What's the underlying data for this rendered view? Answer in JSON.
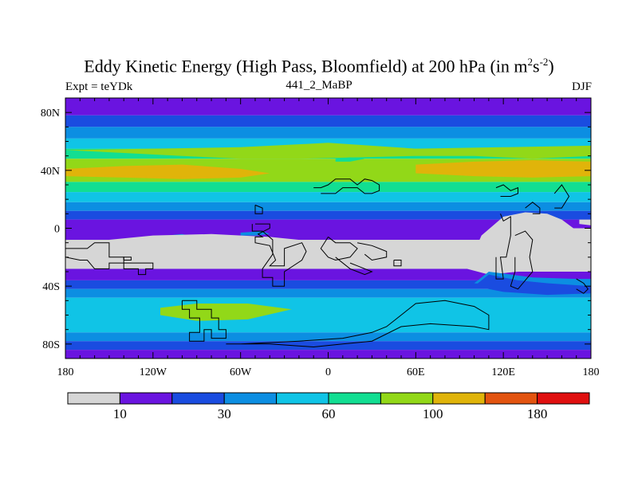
{
  "chart_data": {
    "type": "heatmap",
    "title_main": "Eddy Kinetic Energy (High Pass, Bloomfield) at 200 hPa (in m",
    "title_sup1": "2",
    "title_mid": "s",
    "title_sup2": "-2",
    "title_end": ")",
    "subtitle_left": "Expt = teYDk",
    "subtitle_center": "441_2_MaBP",
    "subtitle_right": "DJF",
    "xlim": [
      -180,
      180
    ],
    "ylim": [
      -90,
      90
    ],
    "x_ticks": [
      {
        "value": -180,
        "label": "180"
      },
      {
        "value": -120,
        "label": "120W"
      },
      {
        "value": -60,
        "label": "60W"
      },
      {
        "value": 0,
        "label": "0"
      },
      {
        "value": 60,
        "label": "60E"
      },
      {
        "value": 120,
        "label": "120E"
      },
      {
        "value": 180,
        "label": "180"
      }
    ],
    "y_ticks": [
      {
        "value": 80,
        "label": "80N"
      },
      {
        "value": 40,
        "label": "40N"
      },
      {
        "value": 0,
        "label": "0"
      },
      {
        "value": -40,
        "label": "40S"
      },
      {
        "value": -80,
        "label": "80S"
      }
    ],
    "colorbar": {
      "colors": [
        "#d6d6d6",
        "#6a14e0",
        "#1a4ce0",
        "#0c8ee2",
        "#10c4e6",
        "#12de92",
        "#92d818",
        "#e0b40a",
        "#e35410",
        "#e01010"
      ],
      "labels": [
        {
          "boundary": 1,
          "label": "10"
        },
        {
          "boundary": 3,
          "label": "30"
        },
        {
          "boundary": 5,
          "label": "60"
        },
        {
          "boundary": 7,
          "label": "100"
        },
        {
          "boundary": 9,
          "label": "180"
        }
      ]
    },
    "zonal_bands": [
      {
        "lat_top": 90,
        "lat_bottom": 78,
        "level": 1
      },
      {
        "lat_top": 78,
        "lat_bottom": 70,
        "level": 2
      },
      {
        "lat_top": 70,
        "lat_bottom": 62,
        "level": 3
      },
      {
        "lat_top": 62,
        "lat_bottom": 55,
        "level": 4
      },
      {
        "lat_top": 55,
        "lat_bottom": 48,
        "level": 5
      },
      {
        "lat_top": 48,
        "lat_bottom": 32,
        "level": 6
      },
      {
        "lat_top": 32,
        "lat_bottom": 25,
        "level": 5
      },
      {
        "lat_top": 25,
        "lat_bottom": 18,
        "level": 4
      },
      {
        "lat_top": 18,
        "lat_bottom": 12,
        "level": 3
      },
      {
        "lat_top": 12,
        "lat_bottom": 6,
        "level": 2
      },
      {
        "lat_top": 6,
        "lat_bottom": -8,
        "level": 1
      },
      {
        "lat_top": -8,
        "lat_bottom": -28,
        "level": 0
      },
      {
        "lat_top": -28,
        "lat_bottom": -36,
        "level": 1
      },
      {
        "lat_top": -36,
        "lat_bottom": -42,
        "level": 2
      },
      {
        "lat_top": -42,
        "lat_bottom": -48,
        "level": 3
      },
      {
        "lat_top": -48,
        "lat_bottom": -72,
        "level": 4
      },
      {
        "lat_top": -72,
        "lat_bottom": -78,
        "level": 3
      },
      {
        "lat_top": -78,
        "lat_bottom": -84,
        "level": 2
      },
      {
        "lat_top": -84,
        "lat_bottom": -90,
        "level": 1
      }
    ],
    "features": [
      {
        "level": 7,
        "points": [
          [
            -180,
            41
          ],
          [
            -140,
            43
          ],
          [
            -100,
            44
          ],
          [
            -60,
            41
          ],
          [
            -40,
            38
          ],
          [
            -60,
            35
          ],
          [
            -100,
            34
          ],
          [
            -140,
            35
          ],
          [
            -180,
            36
          ]
        ]
      },
      {
        "level": 7,
        "points": [
          [
            60,
            44
          ],
          [
            100,
            46
          ],
          [
            140,
            47
          ],
          [
            180,
            46
          ],
          [
            180,
            36
          ],
          [
            140,
            35
          ],
          [
            100,
            36
          ],
          [
            60,
            38
          ]
        ]
      },
      {
        "level": 6,
        "points": [
          [
            -60,
            56
          ],
          [
            0,
            59
          ],
          [
            60,
            55
          ],
          [
            120,
            56
          ],
          [
            180,
            57
          ],
          [
            180,
            50
          ],
          [
            140,
            48
          ],
          [
            100,
            50
          ],
          [
            60,
            50
          ],
          [
            20,
            49
          ],
          [
            -20,
            48
          ],
          [
            -60,
            48
          ],
          [
            -100,
            50
          ],
          [
            -140,
            52
          ],
          [
            -180,
            54
          ]
        ]
      },
      {
        "level": 5,
        "points": [
          [
            5,
            48
          ],
          [
            15,
            49
          ],
          [
            25,
            48
          ],
          [
            15,
            46
          ],
          [
            5,
            46
          ]
        ]
      },
      {
        "level": 6,
        "points": [
          [
            -115,
            -55
          ],
          [
            -90,
            -52
          ],
          [
            -55,
            -52
          ],
          [
            -25,
            -56
          ],
          [
            -55,
            -63
          ],
          [
            -90,
            -64
          ],
          [
            -115,
            -60
          ]
        ]
      },
      {
        "level": 3,
        "points": [
          [
            -110,
            -5
          ],
          [
            -100,
            -4
          ],
          [
            -92,
            -6
          ],
          [
            -100,
            -8
          ],
          [
            -110,
            -7
          ]
        ]
      },
      {
        "level": 3,
        "points": [
          [
            -60,
            -3
          ],
          [
            -45,
            -2
          ],
          [
            -40,
            -4
          ],
          [
            -50,
            -5
          ],
          [
            -60,
            -5
          ]
        ]
      },
      {
        "level": 0,
        "points": [
          [
            95,
            -28
          ],
          [
            105,
            -5
          ],
          [
            120,
            8
          ],
          [
            135,
            11
          ],
          [
            150,
            10
          ],
          [
            160,
            6
          ],
          [
            168,
            0
          ],
          [
            180,
            0
          ],
          [
            180,
            -30
          ],
          [
            160,
            -30
          ],
          [
            130,
            -30
          ],
          [
            110,
            -32
          ]
        ]
      },
      {
        "level": 0,
        "points": [
          [
            50,
            -12
          ],
          [
            80,
            -18
          ],
          [
            95,
            -28
          ],
          [
            60,
            -28
          ]
        ]
      },
      {
        "level": 0,
        "points": [
          [
            -180,
            -8
          ],
          [
            -150,
            -8
          ],
          [
            -120,
            -5
          ],
          [
            -80,
            -4
          ],
          [
            -60,
            -5
          ],
          [
            -40,
            -6
          ],
          [
            0,
            -10
          ],
          [
            40,
            -14
          ],
          [
            50,
            -12
          ],
          [
            60,
            -14
          ],
          [
            60,
            -28
          ],
          [
            -180,
            -28
          ]
        ]
      },
      {
        "level": 0,
        "points": [
          [
            172,
            3
          ],
          [
            180,
            2
          ],
          [
            180,
            6
          ],
          [
            172,
            6
          ]
        ]
      },
      {
        "level": 3,
        "points": [
          [
            110,
            -30
          ],
          [
            125,
            -32
          ],
          [
            140,
            -34
          ],
          [
            170,
            -35
          ],
          [
            180,
            -35
          ],
          [
            180,
            -42
          ],
          [
            150,
            -42
          ],
          [
            120,
            -40
          ],
          [
            100,
            -38
          ]
        ]
      },
      {
        "level": 2,
        "points": [
          [
            110,
            -32
          ],
          [
            130,
            -36
          ],
          [
            150,
            -38
          ],
          [
            180,
            -40
          ],
          [
            180,
            -45
          ],
          [
            150,
            -46
          ],
          [
            120,
            -44
          ],
          [
            100,
            -40
          ]
        ]
      }
    ],
    "coastlines": [
      [
        [
          -180,
          -14
        ],
        [
          -165,
          -14
        ],
        [
          -160,
          -10
        ],
        [
          -150,
          -10
        ],
        [
          -150,
          -20
        ],
        [
          -140,
          -20
        ],
        [
          -140,
          -28
        ],
        [
          -130,
          -28
        ],
        [
          -130,
          -32
        ],
        [
          -125,
          -32
        ],
        [
          -125,
          -28
        ],
        [
          -120,
          -28
        ],
        [
          -120,
          -24
        ],
        [
          -150,
          -24
        ],
        [
          -150,
          -28
        ],
        [
          -160,
          -28
        ],
        [
          -165,
          -22
        ],
        [
          -170,
          -22
        ],
        [
          -180,
          -20
        ]
      ],
      [
        [
          -140,
          -22
        ],
        [
          -135,
          -22
        ],
        [
          -135,
          -20
        ],
        [
          -140,
          -20
        ],
        [
          -140,
          -22
        ]
      ],
      [
        [
          -100,
          -50
        ],
        [
          -90,
          -50
        ],
        [
          -90,
          -56
        ],
        [
          -80,
          -56
        ],
        [
          -80,
          -62
        ],
        [
          -75,
          -62
        ],
        [
          -75,
          -70
        ],
        [
          -70,
          -70
        ],
        [
          -70,
          -76
        ],
        [
          -80,
          -76
        ],
        [
          -80,
          -70
        ],
        [
          -85,
          -70
        ],
        [
          -85,
          -78
        ],
        [
          -95,
          -78
        ],
        [
          -95,
          -72
        ],
        [
          -88,
          -72
        ],
        [
          -88,
          -62
        ],
        [
          -95,
          -62
        ],
        [
          -95,
          -56
        ],
        [
          -100,
          -56
        ],
        [
          -100,
          -50
        ]
      ],
      [
        [
          -70,
          -80
        ],
        [
          -40,
          -80
        ],
        [
          -10,
          -82
        ],
        [
          10,
          -80
        ],
        [
          30,
          -78
        ],
        [
          50,
          -68
        ],
        [
          70,
          -66
        ],
        [
          100,
          -68
        ],
        [
          110,
          -70
        ],
        [
          110,
          -60
        ],
        [
          100,
          -54
        ],
        [
          80,
          -50
        ],
        [
          60,
          -52
        ],
        [
          50,
          -60
        ],
        [
          40,
          -68
        ],
        [
          30,
          -72
        ],
        [
          10,
          -76
        ],
        [
          -20,
          -78
        ],
        [
          -60,
          -80
        ]
      ],
      [
        [
          -50,
          3
        ],
        [
          -40,
          3
        ],
        [
          -40,
          0
        ],
        [
          -48,
          -4
        ],
        [
          -45,
          -6
        ],
        [
          -50,
          -6
        ],
        [
          -50,
          -10
        ],
        [
          -40,
          -12
        ],
        [
          -36,
          -22
        ],
        [
          -40,
          -26
        ],
        [
          -30,
          -26
        ],
        [
          -30,
          -14
        ],
        [
          -18,
          -10
        ],
        [
          -15,
          -16
        ],
        [
          -18,
          -22
        ],
        [
          -30,
          -30
        ],
        [
          -30,
          -40
        ],
        [
          -38,
          -40
        ],
        [
          -38,
          -34
        ],
        [
          -45,
          -34
        ],
        [
          -45,
          -28
        ],
        [
          -38,
          -18
        ],
        [
          -38,
          -8
        ],
        [
          -45,
          -2
        ],
        [
          -52,
          -2
        ],
        [
          -52,
          3
        ]
      ],
      [
        [
          -50,
          16
        ],
        [
          -45,
          14
        ],
        [
          -45,
          10
        ],
        [
          -50,
          10
        ],
        [
          -50,
          16
        ]
      ],
      [
        [
          -10,
          28
        ],
        [
          -5,
          28
        ],
        [
          0,
          30
        ],
        [
          5,
          34
        ],
        [
          15,
          34
        ],
        [
          20,
          30
        ],
        [
          25,
          34
        ],
        [
          30,
          33
        ],
        [
          35,
          30
        ],
        [
          35,
          26
        ],
        [
          30,
          24
        ],
        [
          25,
          24
        ],
        [
          20,
          28
        ],
        [
          10,
          28
        ],
        [
          5,
          24
        ],
        [
          -5,
          24
        ]
      ],
      [
        [
          0,
          -6
        ],
        [
          5,
          -10
        ],
        [
          15,
          -10
        ],
        [
          20,
          -14
        ],
        [
          15,
          -20
        ],
        [
          5,
          -22
        ],
        [
          0,
          -20
        ],
        [
          -5,
          -14
        ],
        [
          0,
          -6
        ]
      ],
      [
        [
          5,
          -20
        ],
        [
          15,
          -28
        ],
        [
          25,
          -32
        ],
        [
          30,
          -30
        ],
        [
          20,
          -26
        ],
        [
          15,
          -24
        ]
      ],
      [
        [
          20,
          -10
        ],
        [
          30,
          -12
        ],
        [
          40,
          -16
        ],
        [
          40,
          -20
        ],
        [
          30,
          -22
        ],
        [
          25,
          -18
        ]
      ],
      [
        [
          45,
          -22
        ],
        [
          50,
          -22
        ],
        [
          50,
          -26
        ],
        [
          45,
          -26
        ],
        [
          45,
          -22
        ]
      ],
      [
        [
          115,
          28
        ],
        [
          120,
          30
        ],
        [
          125,
          26
        ],
        [
          130,
          28
        ],
        [
          130,
          24
        ],
        [
          125,
          22
        ],
        [
          118,
          22
        ]
      ],
      [
        [
          135,
          14
        ],
        [
          140,
          18
        ],
        [
          145,
          14
        ],
        [
          145,
          10
        ],
        [
          140,
          10
        ]
      ],
      [
        [
          155,
          24
        ],
        [
          160,
          30
        ],
        [
          165,
          22
        ],
        [
          160,
          14
        ],
        [
          155,
          14
        ]
      ],
      [
        [
          118,
          10
        ],
        [
          120,
          5
        ],
        [
          125,
          8
        ],
        [
          125,
          -5
        ],
        [
          122,
          -20
        ],
        [
          118,
          -20
        ],
        [
          120,
          -35
        ],
        [
          115,
          -35
        ],
        [
          115,
          -20
        ]
      ],
      [
        [
          128,
          -5
        ],
        [
          135,
          -2
        ],
        [
          140,
          -8
        ],
        [
          138,
          -20
        ],
        [
          140,
          -30
        ],
        [
          135,
          -36
        ],
        [
          130,
          -42
        ],
        [
          125,
          -40
        ],
        [
          128,
          -30
        ],
        [
          128,
          -20
        ]
      ],
      [
        [
          170,
          -35
        ],
        [
          175,
          -38
        ],
        [
          178,
          -42
        ],
        [
          175,
          -45
        ],
        [
          170,
          -42
        ]
      ]
    ]
  }
}
